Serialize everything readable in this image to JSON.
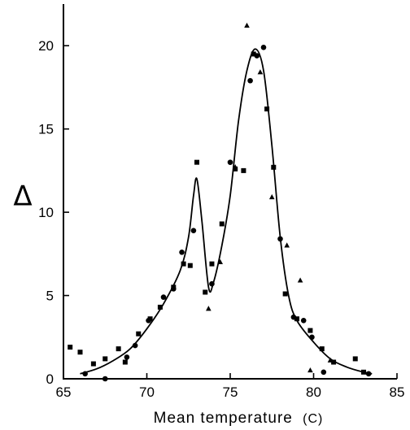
{
  "chart_data": {
    "type": "scatter",
    "xlabel": "Mean  temperature",
    "xunit": "(C)",
    "ylabel": "Δ",
    "xlim": [
      65,
      85
    ],
    "ylim": [
      0,
      22.5
    ],
    "xticks": [
      65,
      70,
      75,
      80,
      85
    ],
    "yticks": [
      0,
      5,
      10,
      15,
      20
    ],
    "fit_curve": [
      [
        66.0,
        0.3
      ],
      [
        67.0,
        0.6
      ],
      [
        68.0,
        1.1
      ],
      [
        69.0,
        1.8
      ],
      [
        70.0,
        3.0
      ],
      [
        71.0,
        4.5
      ],
      [
        72.0,
        6.5
      ],
      [
        72.5,
        8.5
      ],
      [
        72.8,
        11.0
      ],
      [
        73.0,
        12.0
      ],
      [
        73.3,
        9.5
      ],
      [
        73.7,
        5.5
      ],
      [
        74.0,
        5.8
      ],
      [
        74.5,
        8.0
      ],
      [
        75.0,
        11.0
      ],
      [
        75.5,
        15.5
      ],
      [
        76.0,
        18.5
      ],
      [
        76.5,
        19.8
      ],
      [
        77.0,
        18.5
      ],
      [
        77.5,
        14.0
      ],
      [
        78.0,
        8.5
      ],
      [
        78.5,
        5.0
      ],
      [
        79.0,
        3.5
      ],
      [
        80.0,
        2.2
      ],
      [
        81.0,
        1.2
      ],
      [
        82.0,
        0.7
      ],
      [
        83.0,
        0.4
      ],
      [
        83.5,
        0.3
      ]
    ],
    "series": [
      {
        "marker": "square",
        "points": [
          [
            65.4,
            1.9
          ],
          [
            66.0,
            1.6
          ],
          [
            66.8,
            0.9
          ],
          [
            67.5,
            1.2
          ],
          [
            68.3,
            1.8
          ],
          [
            68.7,
            1.0
          ],
          [
            69.5,
            2.7
          ],
          [
            70.2,
            3.6
          ],
          [
            70.8,
            4.3
          ],
          [
            71.6,
            5.5
          ],
          [
            72.2,
            6.9
          ],
          [
            72.6,
            6.8
          ],
          [
            73.0,
            13.0
          ],
          [
            73.5,
            5.2
          ],
          [
            73.9,
            6.9
          ],
          [
            74.5,
            9.3
          ],
          [
            75.3,
            12.6
          ],
          [
            75.8,
            12.5
          ],
          [
            76.4,
            19.5
          ],
          [
            77.2,
            16.2
          ],
          [
            77.6,
            12.7
          ],
          [
            78.3,
            5.1
          ],
          [
            79.0,
            3.6
          ],
          [
            79.8,
            2.9
          ],
          [
            80.5,
            1.8
          ],
          [
            81.2,
            1.0
          ],
          [
            82.5,
            1.2
          ],
          [
            83.0,
            0.4
          ]
        ]
      },
      {
        "marker": "circle",
        "points": [
          [
            66.3,
            0.3
          ],
          [
            67.5,
            0.0
          ],
          [
            68.8,
            1.3
          ],
          [
            69.3,
            2.0
          ],
          [
            70.1,
            3.5
          ],
          [
            71.0,
            4.9
          ],
          [
            71.6,
            5.4
          ],
          [
            72.1,
            7.6
          ],
          [
            72.8,
            8.9
          ],
          [
            73.9,
            5.7
          ],
          [
            75.0,
            13.0
          ],
          [
            76.2,
            17.9
          ],
          [
            76.6,
            19.4
          ],
          [
            77.0,
            19.9
          ],
          [
            78.0,
            8.4
          ],
          [
            78.8,
            3.7
          ],
          [
            79.4,
            3.5
          ],
          [
            79.9,
            2.5
          ],
          [
            80.6,
            0.4
          ],
          [
            83.3,
            0.3
          ]
        ]
      },
      {
        "marker": "triangle",
        "points": [
          [
            73.7,
            4.2
          ],
          [
            74.4,
            7.0
          ],
          [
            75.3,
            12.7
          ],
          [
            76.0,
            21.2
          ],
          [
            76.8,
            18.4
          ],
          [
            77.5,
            10.9
          ],
          [
            78.4,
            8.0
          ],
          [
            79.2,
            5.9
          ],
          [
            79.8,
            0.5
          ],
          [
            81.0,
            1.1
          ]
        ]
      }
    ]
  }
}
